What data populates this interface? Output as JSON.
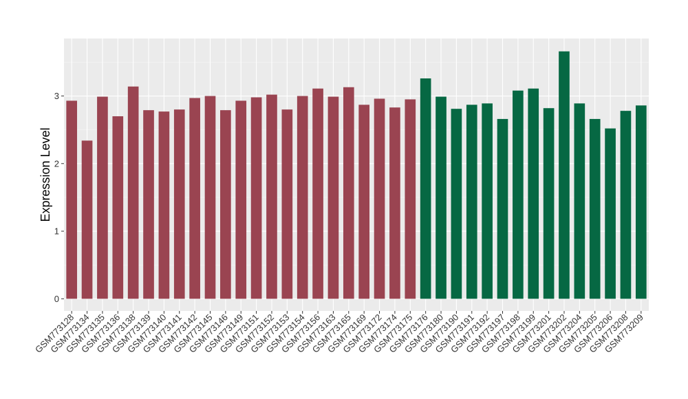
{
  "chart_data": {
    "type": "bar",
    "title": "",
    "xlabel": "",
    "ylabel": "Expression Level",
    "ylim": [
      -0.18,
      3.85
    ],
    "yticks": [
      0,
      1,
      2,
      3
    ],
    "grid": true,
    "legend": "none",
    "background": "#ebebeb",
    "colors": {
      "group1": "#9a4451",
      "group2": "#066843"
    },
    "categories": [
      "GSM773128",
      "GSM773134",
      "GSM773135",
      "GSM773136",
      "GSM773138",
      "GSM773139",
      "GSM773140",
      "GSM773141",
      "GSM773142",
      "GSM773145",
      "GSM773146",
      "GSM773149",
      "GSM773151",
      "GSM773152",
      "GSM773153",
      "GSM773154",
      "GSM773156",
      "GSM773163",
      "GSM773165",
      "GSM773169",
      "GSM773172",
      "GSM773174",
      "GSM773175",
      "GSM773176",
      "GSM773180",
      "GSM773190",
      "GSM773191",
      "GSM773192",
      "GSM773197",
      "GSM773198",
      "GSM773199",
      "GSM773201",
      "GSM773202",
      "GSM773204",
      "GSM773205",
      "GSM773206",
      "GSM773208",
      "GSM773209"
    ],
    "values": [
      2.93,
      2.34,
      2.99,
      2.7,
      3.14,
      2.79,
      2.77,
      2.8,
      2.97,
      3.0,
      2.79,
      2.93,
      2.98,
      3.02,
      2.8,
      3.0,
      3.11,
      2.99,
      3.13,
      2.87,
      2.96,
      2.83,
      2.95,
      3.26,
      2.99,
      2.81,
      2.87,
      2.89,
      2.66,
      3.08,
      3.11,
      2.82,
      3.66,
      2.89,
      2.66,
      2.52,
      2.78,
      2.86
    ],
    "groups": [
      1,
      1,
      1,
      1,
      1,
      1,
      1,
      1,
      1,
      1,
      1,
      1,
      1,
      1,
      1,
      1,
      1,
      1,
      1,
      1,
      1,
      1,
      1,
      2,
      2,
      2,
      2,
      2,
      2,
      2,
      2,
      2,
      2,
      2,
      2,
      2,
      2,
      2
    ]
  }
}
